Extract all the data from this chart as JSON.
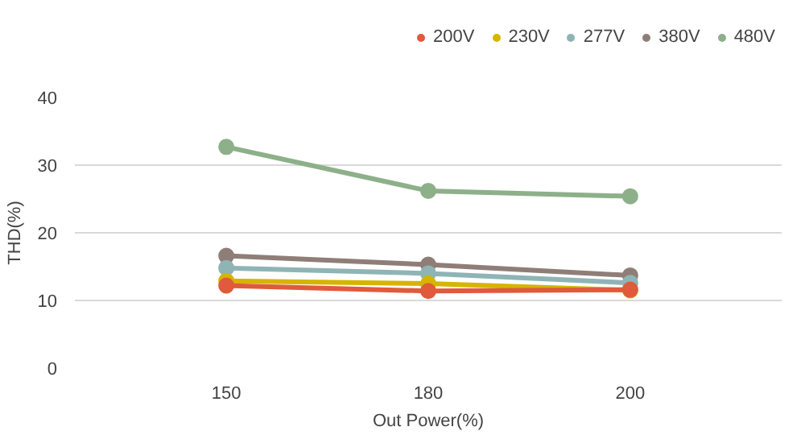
{
  "chart_data": {
    "type": "line",
    "xlabel": "Out Power(%)",
    "ylabel": "THD(%)",
    "categories": [
      "150",
      "180",
      "200"
    ],
    "series": [
      {
        "name": "200V",
        "color": "#e05a3c",
        "values": [
          12.2,
          11.4,
          11.6
        ]
      },
      {
        "name": "230V",
        "color": "#d6b400",
        "values": [
          12.9,
          12.5,
          11.5
        ]
      },
      {
        "name": "277V",
        "color": "#8fb4b6",
        "values": [
          14.8,
          14.0,
          12.6
        ]
      },
      {
        "name": "380V",
        "color": "#8f7e78",
        "values": [
          16.6,
          15.3,
          13.7
        ]
      },
      {
        "name": "480V",
        "color": "#8db08a",
        "values": [
          32.7,
          26.2,
          25.4
        ]
      }
    ],
    "ylim": [
      0,
      40
    ],
    "yticks": [
      0,
      10,
      20,
      30,
      40
    ],
    "grid": "y",
    "legend": "top right",
    "marker": "circle",
    "line_style": "solid"
  }
}
